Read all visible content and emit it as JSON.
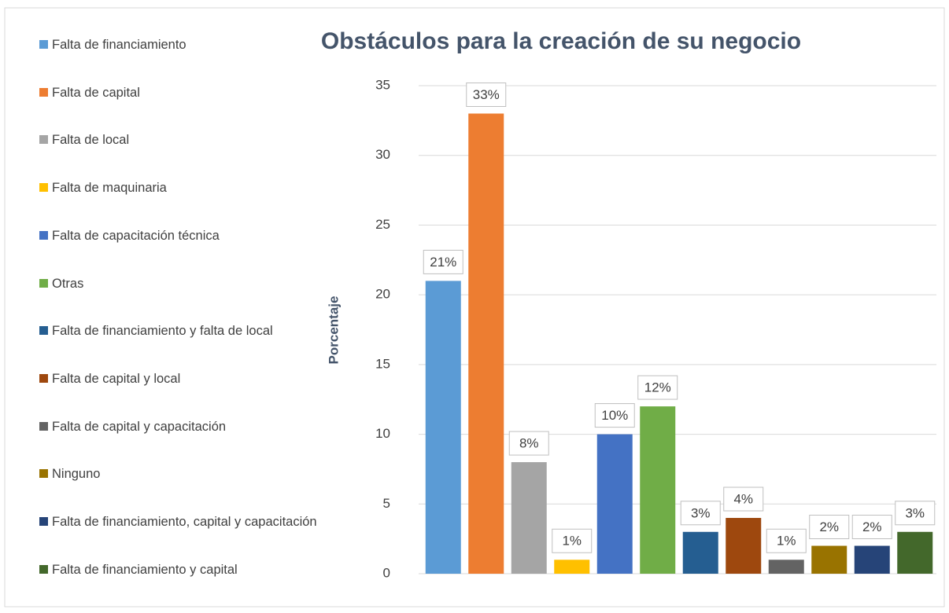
{
  "chart_data": {
    "type": "bar",
    "title": "Obstáculos para la creación de su negocio",
    "y_label": "Porcentaje",
    "categories": [
      "Falta de financiamiento",
      "Falta de capital",
      "Falta de local",
      "Falta de maquinaria",
      "Falta de capacitación técnica",
      "Otras",
      "Falta de financiamiento y falta de local",
      "Falta de capital y local",
      "Falta de capital y capacitación",
      "Ninguno",
      "Falta de financiamiento, capital y capacitación",
      "Falta de financiamiento y capital"
    ],
    "colors": [
      "#5b9bd5",
      "#ed7d31",
      "#a5a5a5",
      "#ffc000",
      "#4472c4",
      "#70ad47",
      "#255e91",
      "#9e480e",
      "#636363",
      "#997300",
      "#264478",
      "#43682b"
    ],
    "values": [
      21,
      33,
      8,
      1,
      10,
      12,
      3,
      4,
      1,
      2,
      2,
      3
    ],
    "value_labels": [
      "21%",
      "33%",
      "8%",
      "1%",
      "10%",
      "12%",
      "3%",
      "4%",
      "1%",
      "2%",
      "2%",
      "3%"
    ],
    "ylim": [
      0,
      35
    ],
    "yticks": [
      0,
      5,
      10,
      15,
      20,
      25,
      30,
      35
    ],
    "grid": true,
    "legend": "left"
  }
}
